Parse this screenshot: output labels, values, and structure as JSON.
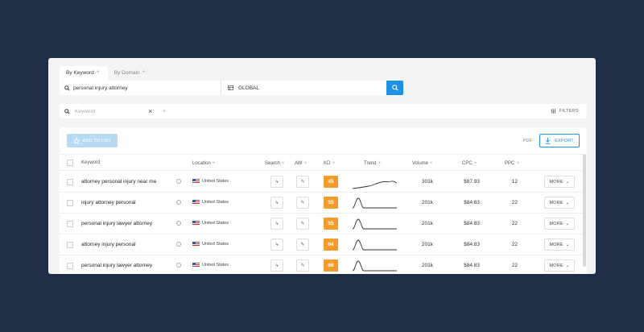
{
  "tabs": [
    {
      "label": "By Keyword",
      "icon": "plus-icon"
    },
    {
      "label": "By Domain",
      "icon": "plus-icon"
    }
  ],
  "search": {
    "value": "personal injury attorney",
    "database": "GLOBAL"
  },
  "filter": {
    "placeholder": "Keyword",
    "filters_label": "FILTERS"
  },
  "toolbar": {
    "add_label": "ADD TO LIST",
    "pdf_label": "PDF",
    "export_label": "EXPORT"
  },
  "columns": {
    "keyword": "Keyword",
    "location": "Location",
    "search": "Search",
    "aw": "AW",
    "kd": "KD",
    "trend": "Trend",
    "volume": "Volume",
    "cpc": "CPC",
    "ppc": "PPC"
  },
  "rows": [
    {
      "keyword": "attorney personal injury near me",
      "location": "United States",
      "kd": "45",
      "volume": "301k",
      "cpc": "$87.93",
      "ppc": "12",
      "more": "MORE",
      "trend_shape": "plateau"
    },
    {
      "keyword": "injury attorney personal",
      "location": "United States",
      "kd": "55",
      "volume": "201k",
      "cpc": "$84.83",
      "ppc": "22",
      "more": "MORE",
      "trend_shape": "spike"
    },
    {
      "keyword": "personal injury lawyer attorney",
      "location": "United States",
      "kd": "55",
      "volume": "201k",
      "cpc": "$84.83",
      "ppc": "22",
      "more": "MORE",
      "trend_shape": "spike"
    },
    {
      "keyword": "attorney injury personal",
      "location": "United States",
      "kd": "64",
      "volume": "201k",
      "cpc": "$84.83",
      "ppc": "22",
      "more": "MORE",
      "trend_shape": "spike"
    },
    {
      "keyword": "personal injury lawyer attorney",
      "location": "United States",
      "kd": "66",
      "volume": "201k",
      "cpc": "$84.83",
      "ppc": "22",
      "more": "MORE",
      "trend_shape": "spike"
    }
  ],
  "colors": {
    "background": "#1f2d46",
    "accent": "#1e90e6",
    "kd_badge": "#f39c2b"
  }
}
